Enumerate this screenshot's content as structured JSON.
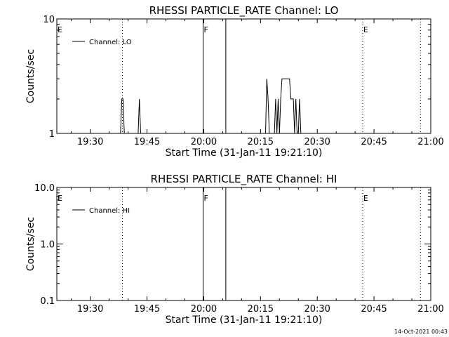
{
  "chart_data": [
    {
      "type": "line",
      "title": "RHESSI PARTICLE_RATE Channel: LO",
      "xlabel": "Start Time (31-Jan-11 19:21:10)",
      "ylabel": "Counts/sec",
      "yscale": "log",
      "ylim": [
        1,
        10
      ],
      "xlim": [
        "19:21:10",
        "21:00:00"
      ],
      "xticks": [
        "19:30",
        "19:45",
        "20:00",
        "20:15",
        "20:30",
        "20:45",
        "21:00"
      ],
      "yticks": [
        "1",
        "10"
      ],
      "legend": {
        "placement": "top-left",
        "entries": [
          "Channel: LO"
        ]
      },
      "event_markers": [
        {
          "label": "E",
          "time": "19:21:10",
          "style": "none"
        },
        {
          "label": "",
          "time": "19:38:30",
          "style": "dotted"
        },
        {
          "label": "F",
          "time": "19:59:50",
          "style": "solid"
        },
        {
          "label": "",
          "time": "20:05:50",
          "style": "solid"
        },
        {
          "label": "E",
          "time": "20:42:00",
          "style": "dotted"
        },
        {
          "label": "",
          "time": "20:57:20",
          "style": "dotted"
        }
      ],
      "series": [
        {
          "name": "Channel: LO",
          "x": [
            "19:38:00",
            "19:38:20",
            "19:38:40",
            "19:39:00",
            "19:42:40",
            "19:43:00",
            "19:43:20",
            "20:16:20",
            "20:16:40",
            "20:17:00",
            "20:17:20",
            "20:18:40",
            "20:19:00",
            "20:19:20",
            "20:19:40",
            "20:20:00",
            "20:20:20",
            "20:20:40",
            "20:21:00",
            "20:21:20",
            "20:21:40",
            "20:22:00",
            "20:22:20",
            "20:22:40",
            "20:23:00",
            "20:23:20",
            "20:23:40",
            "20:24:00",
            "20:24:20",
            "20:24:40",
            "20:25:00",
            "20:25:20",
            "20:25:40",
            "20:26:00"
          ],
          "y": [
            1,
            2,
            2,
            1,
            1,
            2,
            1,
            1,
            3,
            2,
            1,
            1,
            2,
            1,
            2,
            1,
            2,
            3,
            3,
            3,
            3,
            3,
            3,
            3,
            2,
            2,
            2,
            1,
            2,
            1,
            1,
            2,
            1,
            1
          ]
        }
      ]
    },
    {
      "type": "line",
      "title": "RHESSI PARTICLE_RATE Channel: HI",
      "xlabel": "Start Time (31-Jan-11 19:21:10)",
      "ylabel": "Counts/sec",
      "yscale": "log",
      "ylim": [
        0.1,
        10
      ],
      "xlim": [
        "19:21:10",
        "21:00:00"
      ],
      "xticks": [
        "19:30",
        "19:45",
        "20:00",
        "20:15",
        "20:30",
        "20:45",
        "21:00"
      ],
      "yticks": [
        "0.1",
        "1.0",
        "10.0"
      ],
      "legend": {
        "placement": "top-left",
        "entries": [
          "Channel: HI"
        ]
      },
      "event_markers": [
        {
          "label": "E",
          "time": "19:21:10",
          "style": "none"
        },
        {
          "label": "",
          "time": "19:38:30",
          "style": "dotted"
        },
        {
          "label": "F",
          "time": "19:59:50",
          "style": "solid"
        },
        {
          "label": "",
          "time": "20:05:50",
          "style": "solid"
        },
        {
          "label": "E",
          "time": "20:42:00",
          "style": "dotted"
        },
        {
          "label": "",
          "time": "20:57:20",
          "style": "dotted"
        }
      ],
      "series": [
        {
          "name": "Channel: HI",
          "x": [],
          "y": []
        }
      ]
    }
  ],
  "footer": {
    "timestamp": "14-Oct-2021 00:43"
  }
}
